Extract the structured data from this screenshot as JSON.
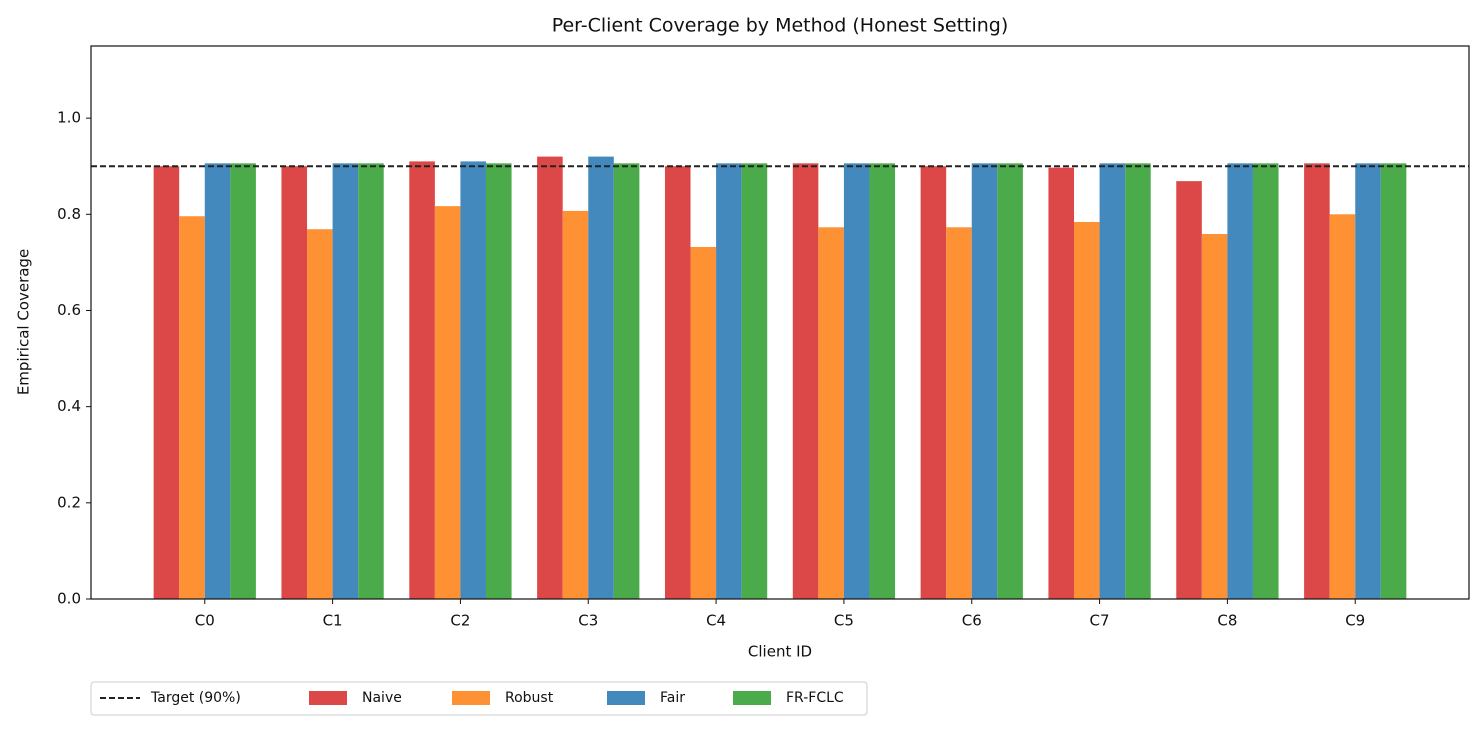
{
  "chart_data": {
    "type": "bar",
    "title": "Per-Client Coverage by Method (Honest Setting)",
    "x_label": "Client ID",
    "y_label": "Empirical Coverage",
    "categories": [
      "C0",
      "C1",
      "C2",
      "C3",
      "C4",
      "C5",
      "C6",
      "C7",
      "C8",
      "C9"
    ],
    "series": [
      {
        "name": "Naive",
        "color": "#dc4748",
        "values": [
          0.9,
          0.9,
          0.91,
          0.92,
          0.9,
          0.906,
          0.9,
          0.897,
          0.869,
          0.906
        ]
      },
      {
        "name": "Robust",
        "color": "#fd9134",
        "values": [
          0.796,
          0.769,
          0.817,
          0.807,
          0.732,
          0.773,
          0.773,
          0.784,
          0.759,
          0.8
        ]
      },
      {
        "name": "Fair",
        "color": "#4389be",
        "values": [
          0.906,
          0.906,
          0.91,
          0.92,
          0.906,
          0.906,
          0.906,
          0.906,
          0.906,
          0.906
        ]
      },
      {
        "name": "FR-FCLC",
        "color": "#4bab4b",
        "values": [
          0.906,
          0.906,
          0.906,
          0.906,
          0.906,
          0.906,
          0.906,
          0.906,
          0.906,
          0.906
        ]
      }
    ],
    "target": {
      "name": "Target (90%)",
      "value": 0.9,
      "color": "#222222"
    },
    "ylim": [
      0,
      1.15
    ],
    "yticks": [
      {
        "value": 0,
        "label": "0.0"
      },
      0.2,
      0.4,
      0.6,
      0.8,
      {
        "value": 1,
        "label": "1.0"
      }
    ],
    "legend": "bottom-left-outside",
    "grid": false
  }
}
